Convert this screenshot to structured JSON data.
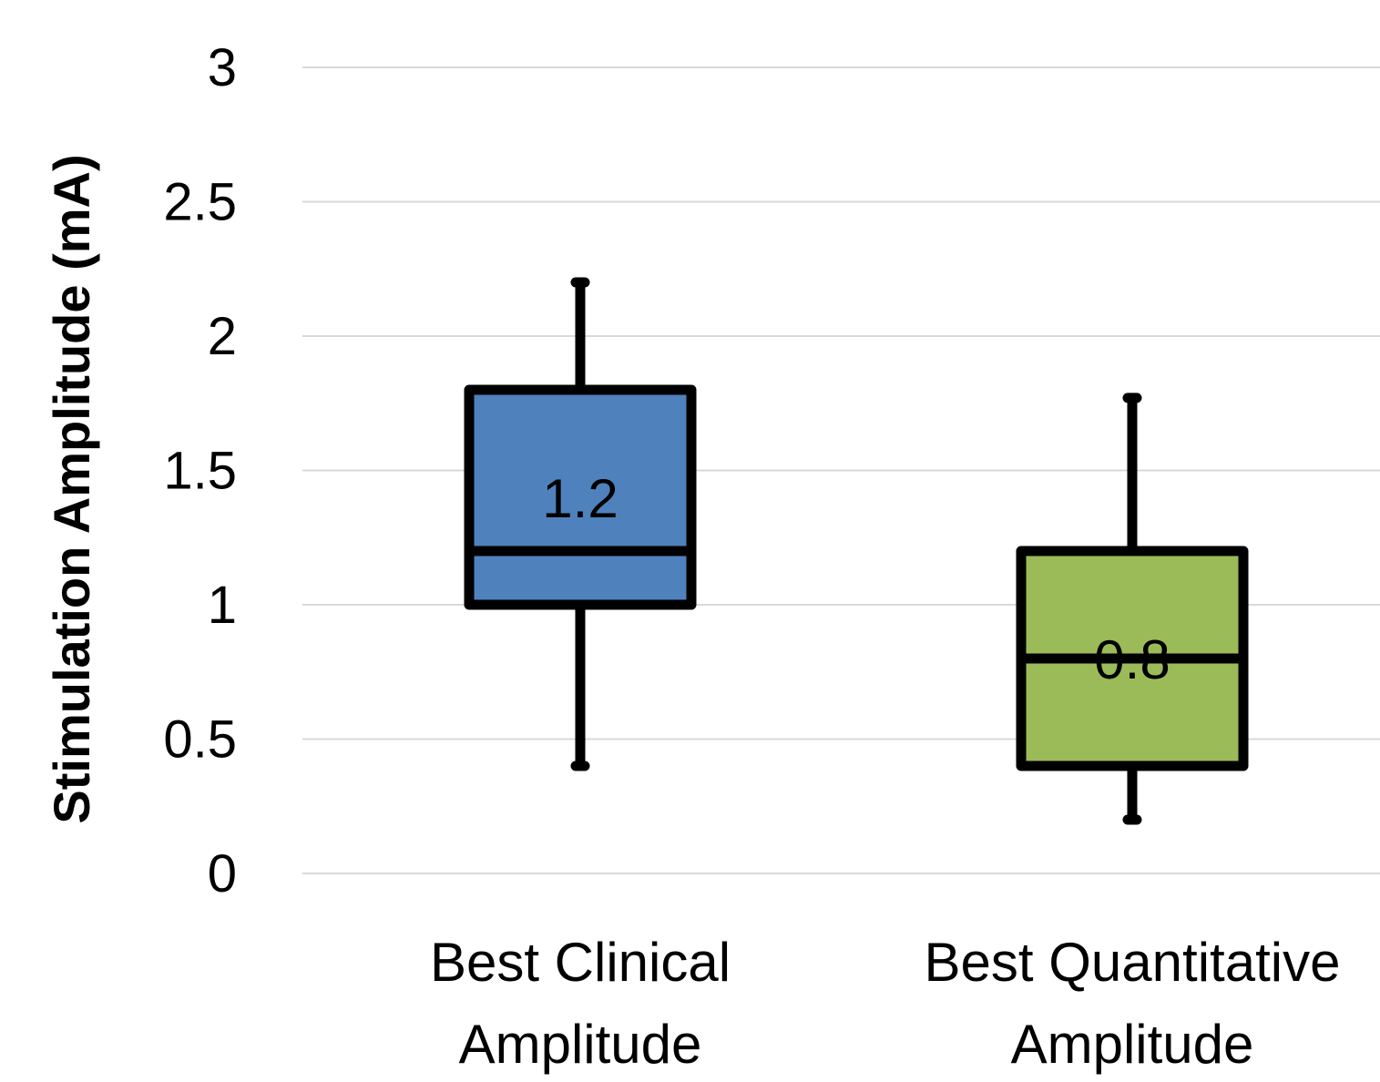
{
  "chart_data": {
    "type": "box",
    "ylabel": "Stimulation Amplitude (mA)",
    "xlabel": "",
    "ylim": [
      0,
      3
    ],
    "yticks": [
      "0",
      "0.5",
      "1",
      "1.5",
      "2",
      "2.5",
      "3"
    ],
    "grid": true,
    "categories": [
      [
        "Best Clinical",
        "Amplitude"
      ],
      [
        "Best Quantitative",
        "Amplitude"
      ]
    ],
    "boxes": [
      {
        "min": 0.4,
        "q1": 1.0,
        "median": 1.2,
        "q3": 1.8,
        "max": 2.2,
        "median_label": "1.2",
        "color": "#4f81bd"
      },
      {
        "min": 0.2,
        "q1": 0.4,
        "median": 0.8,
        "q3": 1.2,
        "max": 1.77,
        "median_label": "0.8",
        "color": "#9bbb59"
      }
    ],
    "colors": {
      "grid": "#d9d9d9",
      "outline": "#000000"
    }
  }
}
